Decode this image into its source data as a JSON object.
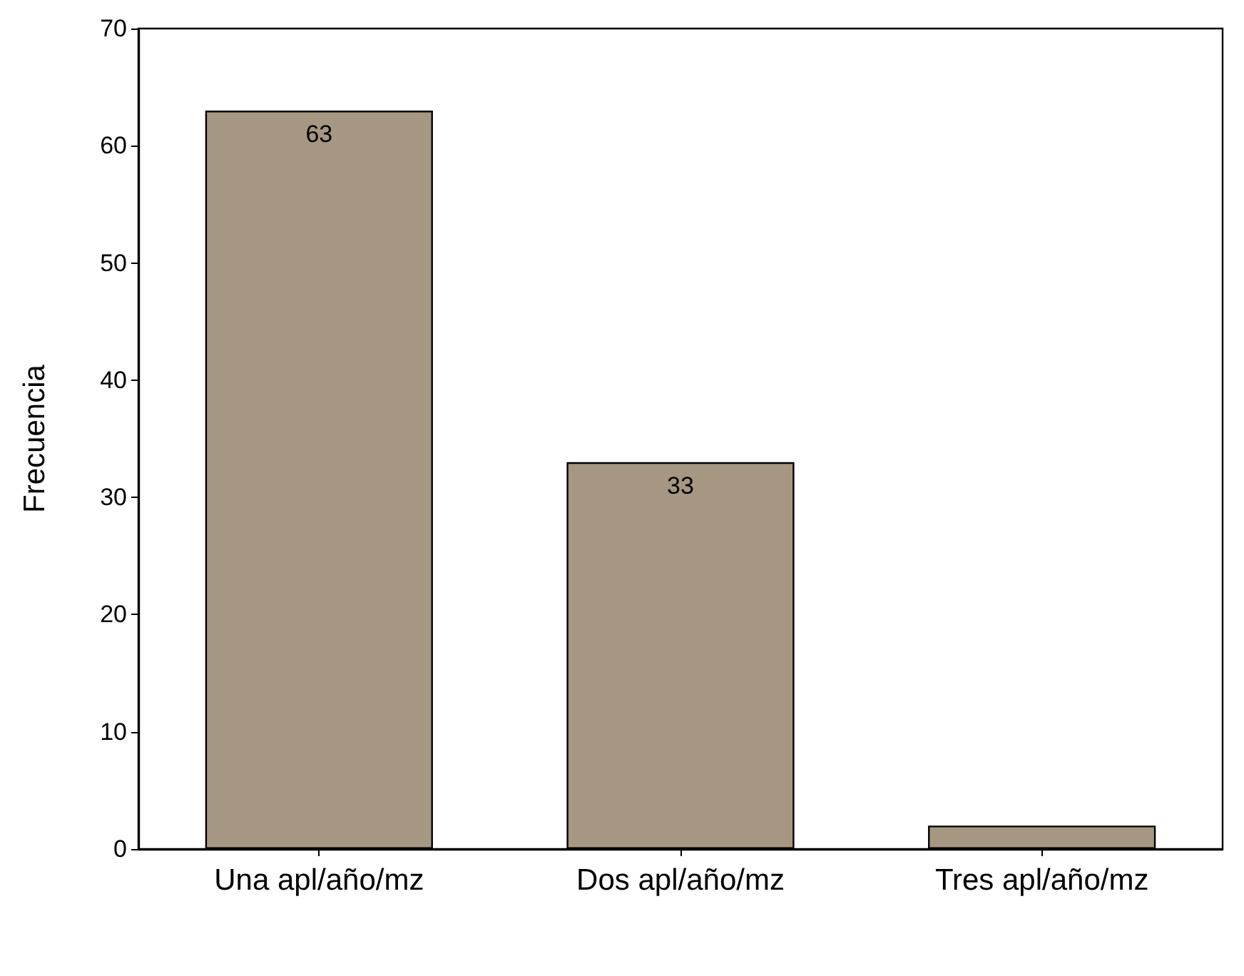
{
  "chart_data": {
    "type": "bar",
    "ylabel": "Frecuencia",
    "categories": [
      "Una apl/año/mz",
      "Dos apl/año/mz",
      "Tres apl/año/mz"
    ],
    "values": [
      63,
      33,
      2
    ],
    "value_labels": [
      "63",
      "33",
      null
    ],
    "color": "#a69782",
    "ylim": [
      0,
      70
    ],
    "yticks": [
      0,
      10,
      20,
      30,
      40,
      50,
      60,
      70
    ],
    "grid": false
  }
}
